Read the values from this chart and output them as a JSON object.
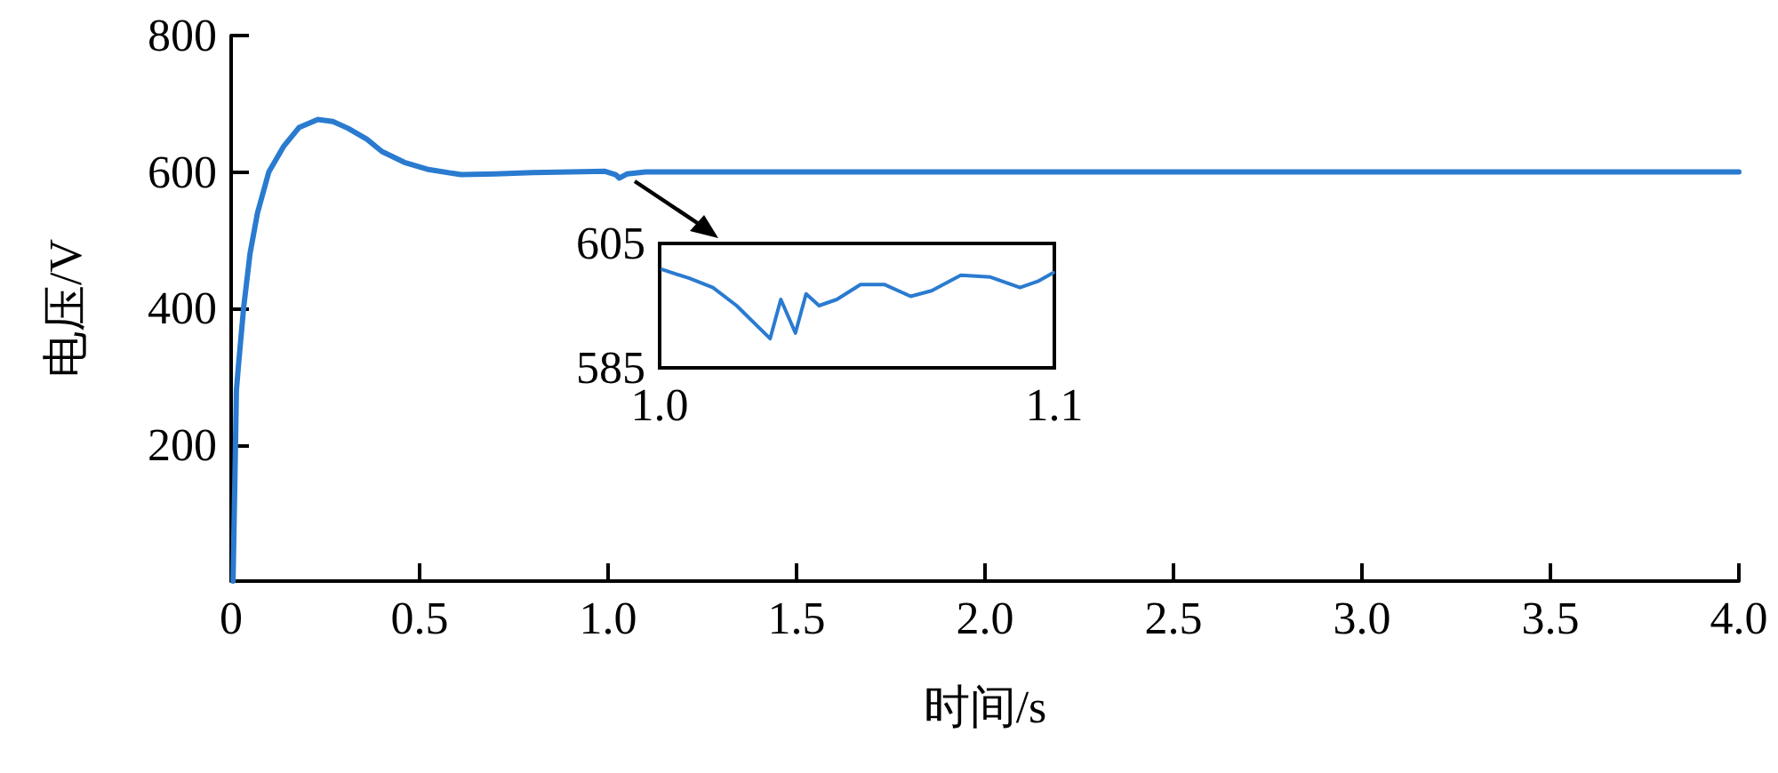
{
  "chart_data": [
    {
      "type": "line",
      "xlabel": "时间/s",
      "ylabel": "电压/V",
      "xlim": [
        0,
        4
      ],
      "ylim": [
        0,
        800
      ],
      "xticks": [
        0,
        {
          "value": 0.5,
          "label": "0.5"
        },
        {
          "value": 1,
          "label": "1.0"
        },
        {
          "value": 1.5,
          "label": "1.5"
        },
        {
          "value": 2,
          "label": "2.0"
        },
        {
          "value": 2.5,
          "label": "2.5"
        },
        {
          "value": 3,
          "label": "3.0"
        },
        {
          "value": 3.5,
          "label": "3.5"
        },
        {
          "value": 4,
          "label": "4.0"
        }
      ],
      "yticks": [
        200,
        400,
        600,
        800
      ],
      "grid": false,
      "marker": "none",
      "line_style": "solid",
      "series": [
        {
          "color": "#2a7bd0",
          "x": [
            0.005,
            0.01,
            0.014,
            0.02,
            0.033,
            0.05,
            0.07,
            0.1,
            0.14,
            0.18,
            0.23,
            0.27,
            0.31,
            0.36,
            0.4,
            0.46,
            0.52,
            0.61,
            0.7,
            0.8,
            0.9,
            0.99,
            1.02,
            1.03,
            1.05,
            1.1,
            1.5,
            2.0,
            2.5,
            3.0,
            3.5,
            4.0
          ],
          "values": [
            0,
            150,
            280,
            320,
            400,
            480,
            540,
            600,
            638,
            665,
            677,
            674,
            664,
            648,
            630,
            614,
            604,
            596,
            597,
            599,
            600,
            601,
            596,
            591,
            597,
            600,
            600,
            600,
            600,
            600,
            600,
            600
          ]
        }
      ]
    },
    {
      "type": "line",
      "xlim": [
        1.0,
        1.1
      ],
      "ylim": [
        585,
        605
      ],
      "xticks": [
        {
          "value": 1.0,
          "label": "1.0"
        },
        {
          "value": 1.1,
          "label": "1.1"
        }
      ],
      "yticks": [
        585,
        605
      ],
      "grid": false,
      "marker": "none",
      "line_style": "solid",
      "series": [
        {
          "color": "#2a7bd0",
          "x": [
            1.0007,
            1.0075,
            1.0135,
            1.0195,
            1.028,
            1.0307,
            1.0344,
            1.0371,
            1.0404,
            1.0449,
            1.0509,
            1.0569,
            1.0636,
            1.0689,
            1.0763,
            1.0838,
            1.0913,
            1.0958,
            1.0997
          ],
          "values": [
            600.8,
            599.4,
            597.9,
            595.0,
            589.7,
            596.0,
            590.6,
            596.9,
            595.0,
            596.0,
            598.4,
            598.4,
            596.5,
            597.4,
            599.9,
            599.6,
            597.9,
            598.9,
            600.3
          ]
        }
      ]
    }
  ]
}
